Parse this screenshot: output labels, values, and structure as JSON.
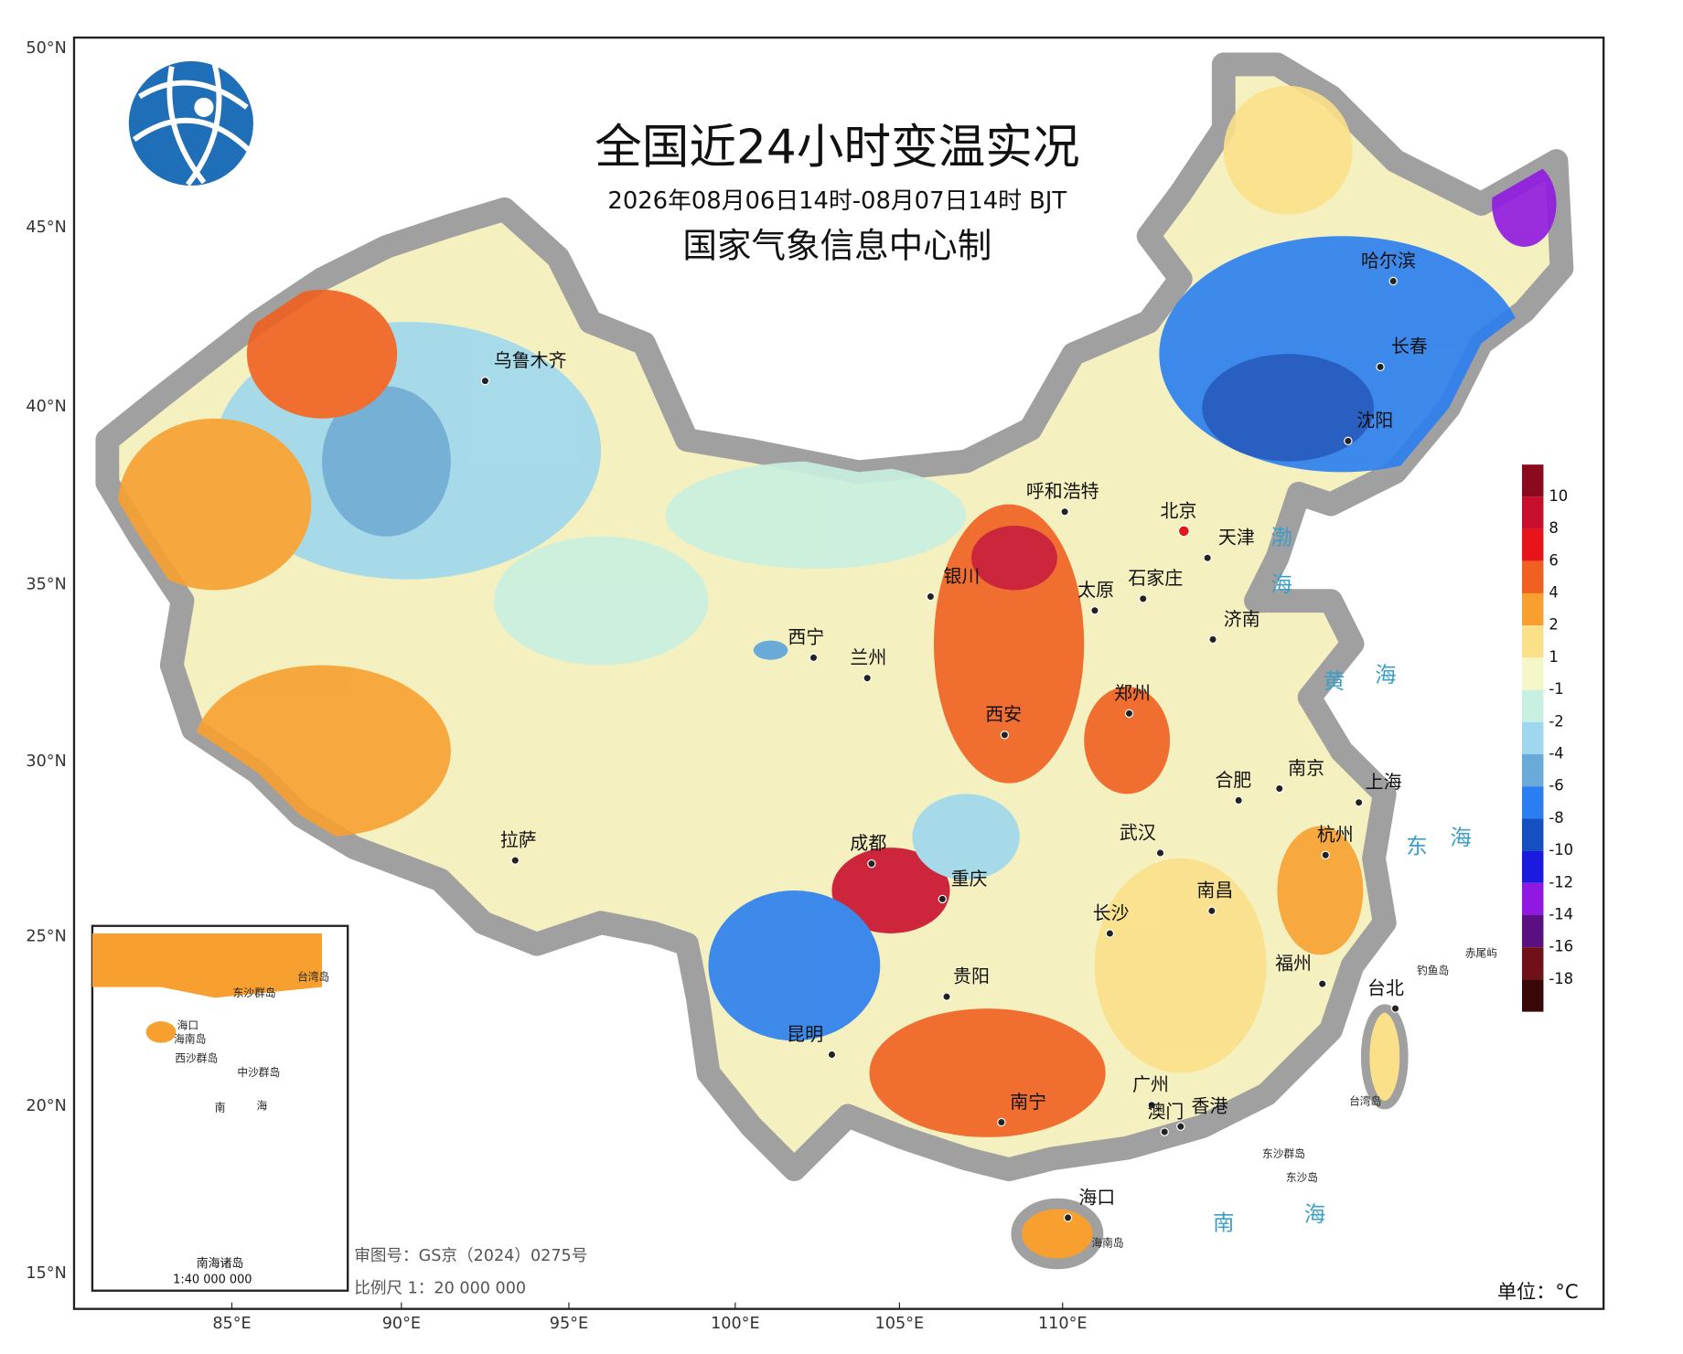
{
  "title": "全国近24小时变温实况",
  "subtitle": "2026年08月06日14时-08月07日14时 BJT",
  "producer": "国家气象信息中心制",
  "latitudes": [
    "50°N",
    "45°N",
    "40°N",
    "35°N",
    "30°N",
    "25°N",
    "20°N",
    "15°N"
  ],
  "longitudes": [
    "85°E",
    "90°E",
    "95°E",
    "100°E",
    "105°E",
    "110°E"
  ],
  "cities": [
    "乌鲁木齐",
    "哈尔滨",
    "长春",
    "沈阳",
    "呼和浩特",
    "北京",
    "天津",
    "石家庄",
    "太原",
    "济南",
    "银川",
    "西宁",
    "兰州",
    "西安",
    "郑州",
    "合肥",
    "南京",
    "上海",
    "拉萨",
    "成都",
    "重庆",
    "武汉",
    "杭州",
    "长沙",
    "南昌",
    "贵阳",
    "福州",
    "台北",
    "昆明",
    "广州",
    "南宁",
    "香港",
    "澳门",
    "海口"
  ],
  "seas": [
    "渤",
    "海",
    "黄",
    "海",
    "东",
    "海",
    "南",
    "海"
  ],
  "islands": [
    "钓鱼岛",
    "赤尾屿",
    "台湾岛",
    "东沙群岛",
    "东沙岛",
    "海南岛"
  ],
  "inset": {
    "title": "南海诸岛",
    "scale": "1:40 000 000",
    "labels": [
      "海口",
      "海南岛",
      "西沙群岛",
      "中沙群岛",
      "南",
      "海",
      "东沙群岛",
      "台湾岛"
    ]
  },
  "footer": {
    "approval": "审图号：GS京（2024）0275号",
    "scale": "比例尺 1：20 000 000"
  },
  "legend": {
    "unit": "单位：°C",
    "ticks": [
      10,
      8,
      6,
      4,
      2,
      1,
      -1,
      -2,
      -4,
      -6,
      -8,
      -10,
      -12,
      -14,
      -16,
      -18
    ],
    "colors": [
      "#8b0a1e",
      "#c8102e",
      "#e8141a",
      "#f06020",
      "#f7a030",
      "#fbe08a",
      "#f5f7c8",
      "#c8f0e0",
      "#9fd8ee",
      "#6aaad8",
      "#2a7ef0",
      "#1450c0",
      "#1a1ae0",
      "#9018e0",
      "#5a1080",
      "#701018",
      "#3a0808"
    ]
  }
}
